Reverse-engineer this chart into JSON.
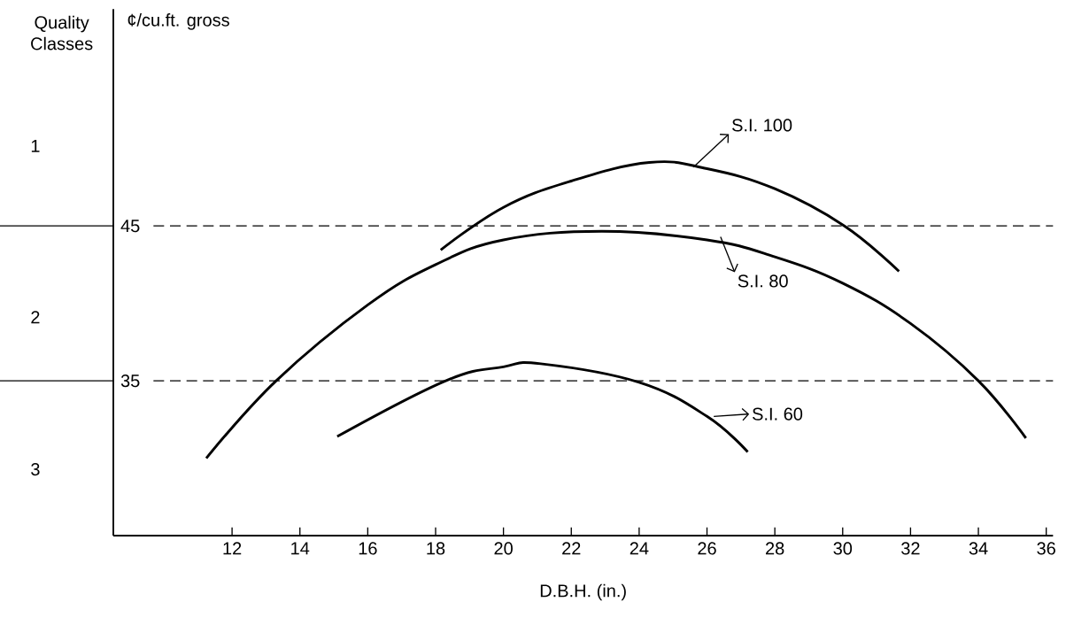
{
  "chart_data": {
    "type": "line",
    "xlabel": "D.B.H. (in.)",
    "ylabel": "¢/cu.ft. gross",
    "xlim": [
      8.5,
      36.2
    ],
    "ylim": [
      25,
      59
    ],
    "xticks": [
      12,
      14,
      16,
      18,
      20,
      22,
      24,
      26,
      28,
      30,
      32,
      34,
      36
    ],
    "yticks": [
      35,
      45
    ],
    "series": [
      {
        "color": "#000000",
        "x": [
          18.15,
          20,
          22,
          24.3,
          26,
          28,
          30.05,
          31.66
        ],
        "values": [
          43.45,
          46.2,
          47.9,
          49.1,
          48.7,
          47.4,
          45,
          42.07
        ]
      },
      {
        "color": "#000000",
        "x": [
          11.24,
          13.3,
          16,
          18,
          20,
          22.9,
          26,
          28,
          30,
          32,
          34,
          35.4
        ],
        "values": [
          30.0,
          35,
          39.9,
          42.5,
          44.1,
          44.65,
          44.1,
          43.0,
          41.3,
          38.7,
          35,
          31.3
        ]
      },
      {
        "color": "#000000",
        "x": [
          15.1,
          18.3,
          20,
          21.1,
          24,
          26,
          27.2
        ],
        "values": [
          31.4,
          35,
          35.9,
          36.1,
          34.9,
          32.7,
          30.4
        ]
      }
    ],
    "ref_lines": [
      {
        "axis": "y",
        "value": 45,
        "line_style": "dashed"
      },
      {
        "axis": "y",
        "value": 35,
        "line_style": "dashed"
      }
    ],
    "annotations": [
      "Quality Classes",
      "1",
      "2",
      "3",
      {
        "text": "S.I. 100",
        "x": 25.6,
        "y": 48.8
      },
      {
        "text": "S.I. 80",
        "x": 26.4,
        "y": 44.3
      },
      {
        "text": "S.I. 60",
        "x": 26.2,
        "y": 32.7
      }
    ]
  }
}
